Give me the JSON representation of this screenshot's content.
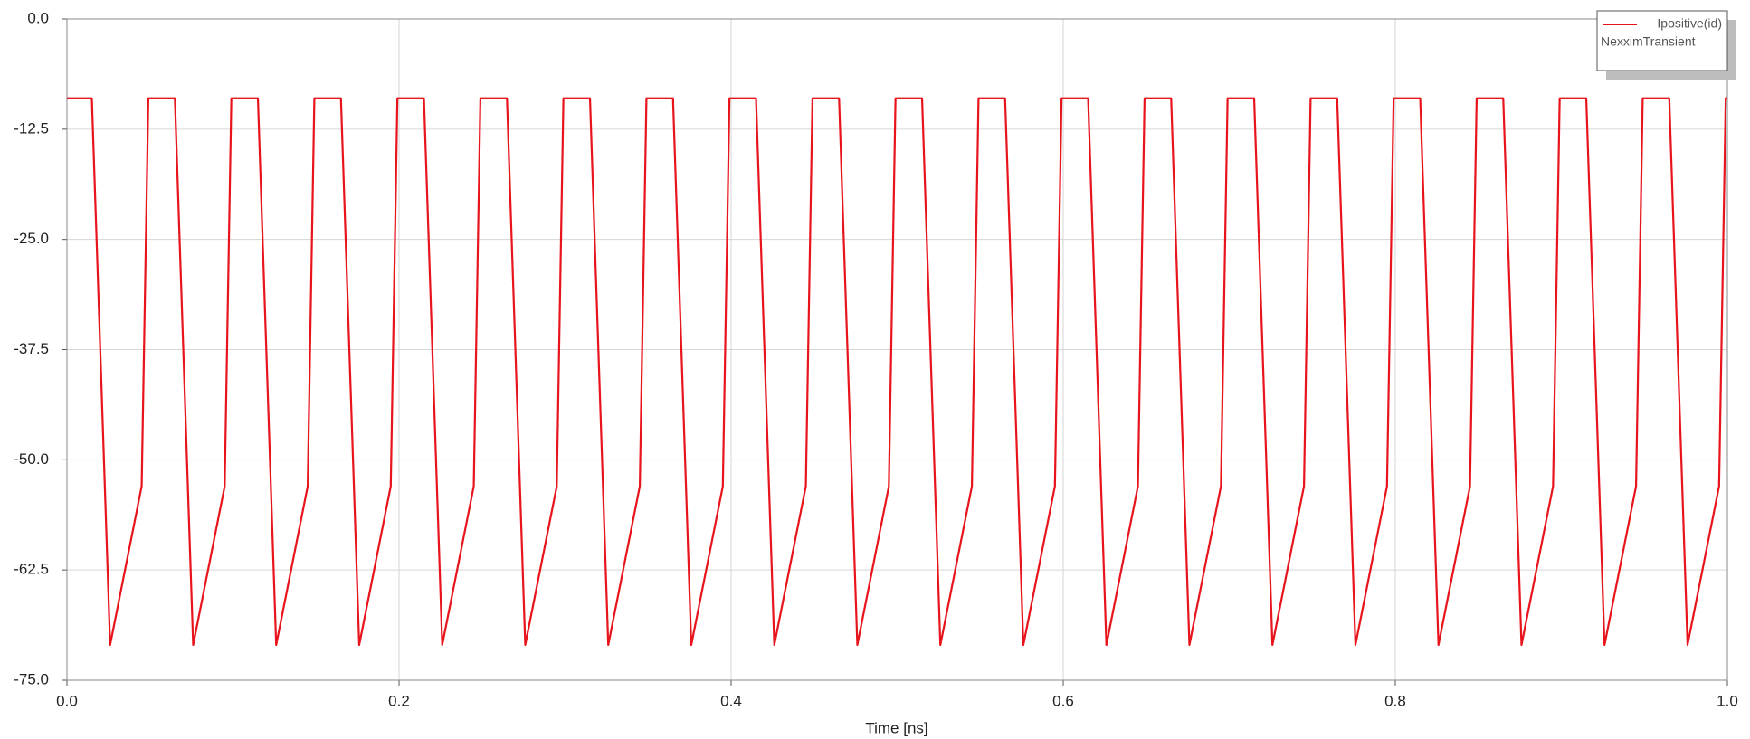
{
  "chart_data": {
    "type": "line",
    "xlabel": "Time [ns]",
    "legend_source": "NexximTransient",
    "legend_position": "upper right",
    "grid": true,
    "xlim": [
      0,
      1
    ],
    "ylim": [
      -75,
      0
    ],
    "xticks": [
      {
        "value": 0,
        "label": "0.0"
      },
      0.2,
      0.4,
      0.6,
      0.8,
      {
        "value": 1,
        "label": "1.0"
      }
    ],
    "yticks": [
      {
        "value": 0,
        "label": "0.0"
      },
      -12.5,
      {
        "value": -25,
        "label": "-25.0"
      },
      -37.5,
      {
        "value": -50,
        "label": "-50.0"
      },
      -62.5,
      {
        "value": -75,
        "label": "-75.0"
      }
    ],
    "x": [
      0,
      0.015,
      0.026,
      0.045,
      0.049,
      0.065,
      0.076,
      0.095,
      0.099,
      0.115,
      0.126,
      0.145,
      0.149,
      0.165,
      0.176,
      0.195,
      0.199,
      0.215,
      0.226,
      0.245,
      0.249,
      0.265,
      0.276,
      0.295,
      0.299,
      0.315,
      0.326,
      0.345,
      0.349,
      0.365,
      0.376,
      0.395,
      0.399,
      0.415,
      0.426,
      0.445,
      0.449,
      0.465,
      0.476,
      0.495,
      0.499,
      0.515,
      0.526,
      0.545,
      0.549,
      0.565,
      0.576,
      0.595,
      0.599,
      0.615,
      0.626,
      0.645,
      0.649,
      0.665,
      0.676,
      0.695,
      0.699,
      0.715,
      0.726,
      0.745,
      0.749,
      0.765,
      0.776,
      0.795,
      0.799,
      0.815,
      0.826,
      0.845,
      0.849,
      0.865,
      0.876,
      0.895,
      0.899,
      0.915,
      0.926,
      0.945,
      0.949,
      0.965,
      0.976,
      0.995,
      0.999,
      1
    ],
    "series": [
      {
        "name": "Ipositive(id)",
        "color": "#e8141c",
        "values": [
          -9,
          -9,
          -71,
          -53,
          -9,
          -9,
          -71,
          -53,
          -9,
          -9,
          -71,
          -53,
          -9,
          -9,
          -71,
          -53,
          -9,
          -9,
          -71,
          -53,
          -9,
          -9,
          -71,
          -53,
          -9,
          -9,
          -71,
          -53,
          -9,
          -9,
          -71,
          -53,
          -9,
          -9,
          -71,
          -53,
          -9,
          -9,
          -71,
          -53,
          -9,
          -9,
          -71,
          -53,
          -9,
          -9,
          -71,
          -53,
          -9,
          -9,
          -71,
          -53,
          -9,
          -9,
          -71,
          -53,
          -9,
          -9,
          -71,
          -53,
          -9,
          -9,
          -71,
          -53,
          -9,
          -9,
          -71,
          -53,
          -9,
          -9,
          -71,
          -53,
          -9,
          -9,
          -71,
          -53,
          -9,
          -9,
          -71,
          -53,
          -9,
          -9
        ]
      }
    ]
  }
}
